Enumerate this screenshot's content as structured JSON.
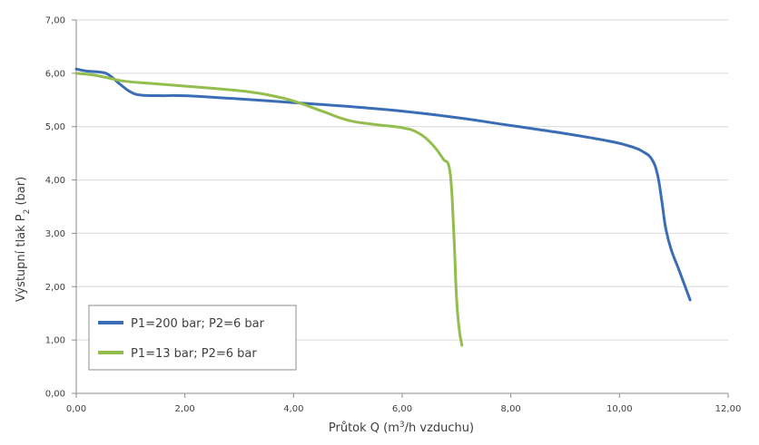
{
  "chart_data": {
    "type": "line",
    "title": "",
    "xlabel": {
      "prefix": "Průtok Q (m",
      "sup": "3",
      "suffix": "/h vzduchu)"
    },
    "ylabel": {
      "prefix": "Výstupní tlak P",
      "sub": "2",
      "suffix": " (bar)"
    },
    "xlim": [
      0,
      12
    ],
    "ylim": [
      0,
      7
    ],
    "x_ticks": [
      "0,00",
      "2,00",
      "4,00",
      "6,00",
      "8,00",
      "10,00",
      "12,00"
    ],
    "y_ticks": [
      "0,00",
      "1,00",
      "2,00",
      "3,00",
      "4,00",
      "5,00",
      "6,00",
      "7,00"
    ],
    "grid": "horizontal",
    "legend_position": "bottom-left",
    "series": [
      {
        "name": "P1=200 bar; P2=6 bar",
        "color": "#3a6db5",
        "x": [
          0.0,
          0.2,
          0.45,
          0.6,
          0.8,
          1.0,
          1.2,
          1.6,
          2.0,
          3.0,
          4.0,
          5.0,
          6.0,
          7.0,
          8.0,
          9.0,
          9.8,
          10.2,
          10.45,
          10.6,
          10.7,
          10.78,
          10.85,
          10.95,
          11.1,
          11.3
        ],
        "y": [
          6.08,
          6.04,
          6.02,
          5.97,
          5.8,
          5.65,
          5.59,
          5.58,
          5.58,
          5.52,
          5.45,
          5.38,
          5.29,
          5.17,
          5.02,
          4.87,
          4.73,
          4.63,
          4.52,
          4.38,
          4.1,
          3.6,
          3.1,
          2.7,
          2.3,
          1.75
        ]
      },
      {
        "name": "P1=13 bar; P2=6 bar",
        "color": "#93bd4d",
        "x": [
          0.0,
          0.3,
          0.6,
          0.9,
          1.5,
          2.5,
          3.2,
          3.6,
          4.0,
          4.5,
          5.0,
          5.5,
          6.0,
          6.3,
          6.55,
          6.75,
          6.88,
          6.95,
          7.0,
          7.05,
          7.1
        ],
        "y": [
          6.0,
          5.97,
          5.91,
          5.85,
          5.8,
          5.72,
          5.65,
          5.58,
          5.48,
          5.3,
          5.12,
          5.04,
          4.98,
          4.88,
          4.67,
          4.4,
          4.15,
          3.0,
          1.8,
          1.2,
          0.9
        ]
      }
    ]
  }
}
